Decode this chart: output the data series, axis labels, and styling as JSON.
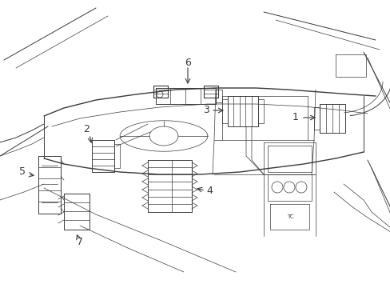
{
  "bg_color": "#ffffff",
  "line_color": "#3a3a3a",
  "lw_main": 1.0,
  "lw_thin": 0.5,
  "lw_med": 0.7,
  "fig_w": 4.89,
  "fig_h": 3.6,
  "dpi": 100
}
